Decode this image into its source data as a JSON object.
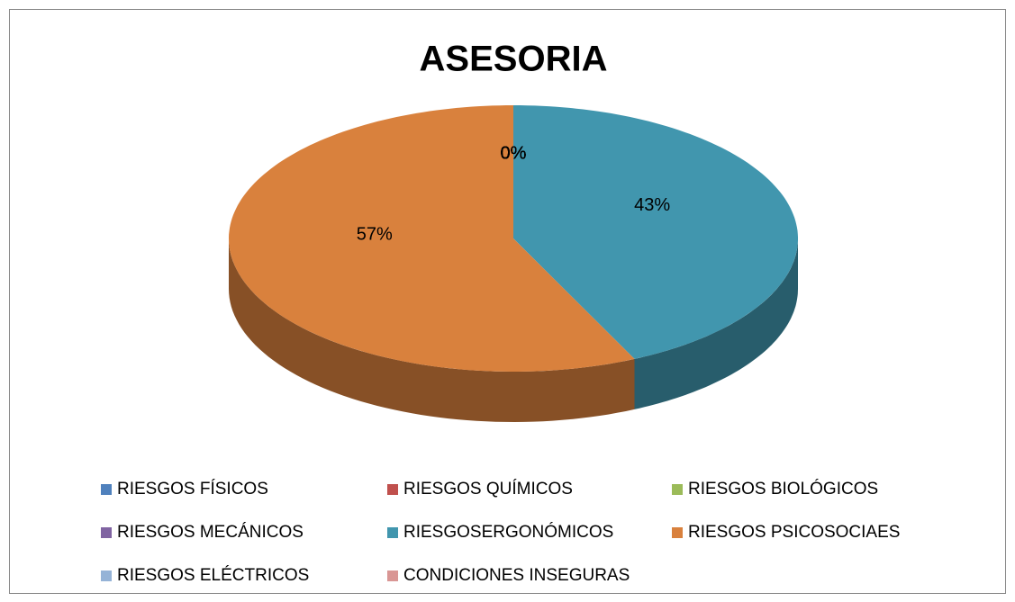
{
  "chart_data": {
    "type": "pie",
    "title": "ASESORIA",
    "categories": [
      "RIESGOS FÍSICOS",
      "RIESGOS QUÍMICOS",
      "RIESGOS BIOLÓGICOS",
      "RIESGOS MECÁNICOS",
      "RIESGOSERGONÓMICOS",
      "RIESGOS PSICOSOCIAES",
      "RIESGOS ELÉCTRICOS",
      "CONDICIONES INSEGURAS"
    ],
    "values": [
      0,
      0,
      0,
      0,
      43,
      57,
      0,
      0
    ],
    "value_labels": [
      "0%",
      "0%",
      "0%",
      "0%",
      "43%",
      "57%",
      "0%",
      "0%"
    ],
    "colors": [
      "#4f81bd",
      "#c0504d",
      "#9bbb59",
      "#8064a2",
      "#4196ae",
      "#d9813d",
      "#95b3d7",
      "#d99694"
    ],
    "legend": "bottom"
  }
}
